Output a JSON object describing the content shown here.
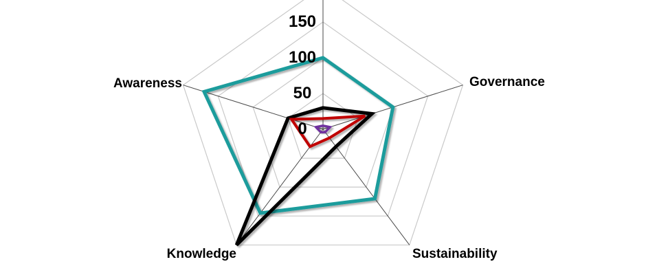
{
  "chart_data": {
    "type": "radar",
    "axis_labels": [
      "",
      "Governance",
      "Sustainability",
      "Knowledge",
      "Awareness"
    ],
    "radial_axis": {
      "min": 0,
      "max": 200,
      "tick_step": 50,
      "tick_labels": [
        "0",
        "50",
        "100",
        "150"
      ]
    },
    "series": [
      {
        "id": "series-1",
        "color": "#1E9C9C",
        "values": [
          100,
          100,
          120,
          145,
          170
        ]
      },
      {
        "id": "series-2",
        "color": "#000000",
        "values": [
          30,
          70,
          30,
          200,
          50
        ]
      },
      {
        "id": "series-3",
        "color": "#C00000",
        "values": [
          15,
          60,
          15,
          30,
          45
        ]
      },
      {
        "id": "series-4",
        "color": "#7030A0",
        "values": [
          5,
          10,
          5,
          5,
          10
        ]
      }
    ],
    "grid": {
      "ring_color": "#C9C9C9",
      "spoke_color": "#4A4A4A",
      "legend": "none"
    }
  }
}
